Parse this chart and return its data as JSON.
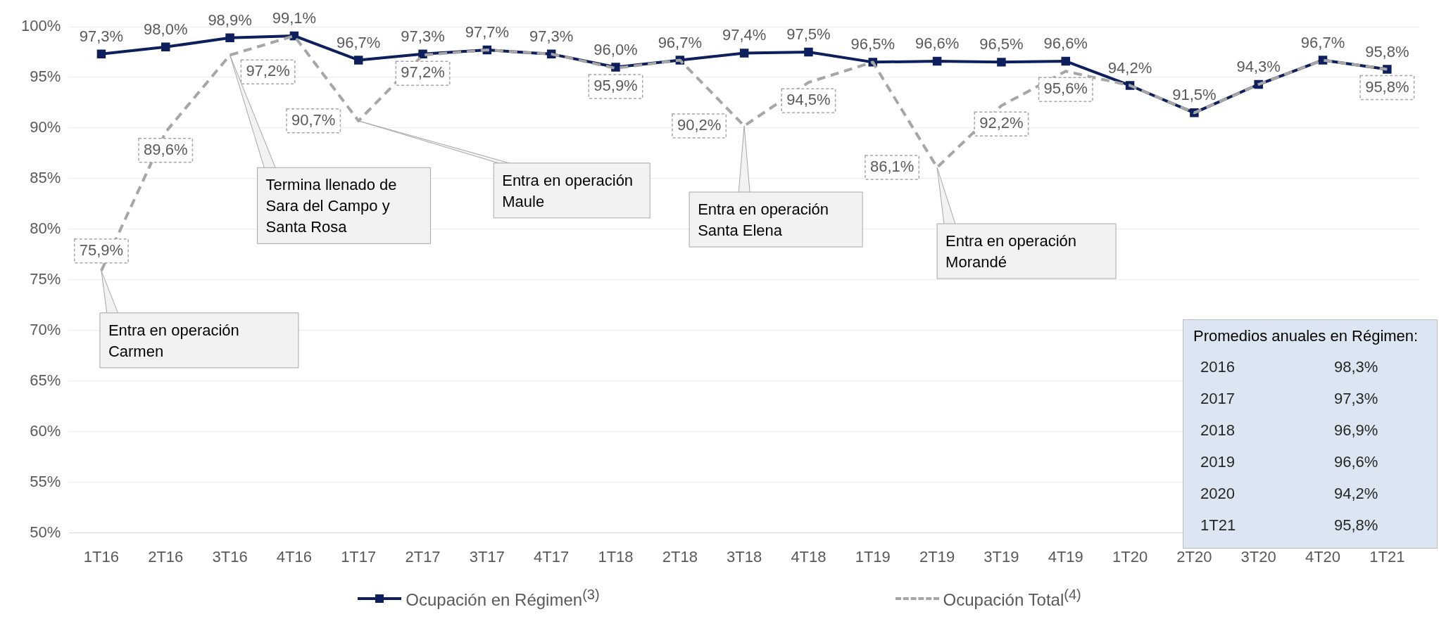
{
  "chart_data": {
    "type": "line",
    "categories": [
      "1T16",
      "2T16",
      "3T16",
      "4T16",
      "1T17",
      "2T17",
      "3T17",
      "4T17",
      "1T18",
      "2T18",
      "3T18",
      "4T18",
      "1T19",
      "2T19",
      "3T19",
      "4T19",
      "1T20",
      "2T20",
      "3T20",
      "4T20",
      "1T21"
    ],
    "series": [
      {
        "name": "Ocupación Total$^{(4)}$",
        "color": "#a6a6a6",
        "line_style": "dashed",
        "marker": "none",
        "values": [
          75.9,
          89.6,
          97.2,
          99.1,
          90.7,
          97.2,
          97.7,
          97.3,
          95.9,
          96.7,
          90.2,
          94.5,
          96.5,
          86.1,
          92.2,
          95.6,
          94.2,
          91.5,
          94.3,
          96.7,
          95.8
        ],
        "value_labels": [
          "75,9%",
          "89,6%",
          "97,2%",
          null,
          "90,7%",
          "97,2%",
          null,
          null,
          "95,9%",
          null,
          "90,2%",
          "94,5%",
          null,
          "86,1%",
          "92,2%",
          "95,6%",
          null,
          null,
          null,
          null,
          "95,8%"
        ]
      },
      {
        "name": "Ocupación en Régimen$^{(3)}$",
        "color": "#0d1f5c",
        "line_style": "solid",
        "marker": "square",
        "values": [
          97.3,
          98.0,
          98.9,
          99.1,
          96.7,
          97.3,
          97.7,
          97.3,
          96.0,
          96.7,
          97.4,
          97.5,
          96.5,
          96.6,
          96.5,
          96.6,
          94.2,
          91.5,
          94.3,
          96.7,
          95.8
        ],
        "value_labels": [
          "97,3%",
          "98,0%",
          "98,9%",
          "99,1%",
          "96,7%",
          "97,3%",
          "97,7%",
          "97,3%",
          "96,0%",
          "96,7%",
          "97,4%",
          "97,5%",
          "96,5%",
          "96,6%",
          "96,5%",
          "96,6%",
          "94,2%",
          "91,5%",
          "94,3%",
          "96,7%",
          "95,8%"
        ]
      }
    ],
    "ylim": [
      50,
      100
    ],
    "yticks": [
      {
        "value": 50,
        "label": "50%"
      },
      {
        "value": 55,
        "label": "55%"
      },
      {
        "value": 60,
        "label": "60%"
      },
      {
        "value": 65,
        "label": "65%"
      },
      {
        "value": 70,
        "label": "70%"
      },
      {
        "value": 75,
        "label": "75%"
      },
      {
        "value": 80,
        "label": "80%"
      },
      {
        "value": 85,
        "label": "85%"
      },
      {
        "value": 90,
        "label": "90%"
      },
      {
        "value": 95,
        "label": "95%"
      },
      {
        "value": 100,
        "label": "100%"
      }
    ],
    "grid": "y",
    "legend": "bottom",
    "annotations": [
      {
        "text": "Entra en operación Carmen",
        "x": "1T16",
        "y": 75.9
      },
      {
        "text": "Termina llenado de Sara del Campo y Santa Rosa",
        "x": "3T16",
        "y": 97.2
      },
      {
        "text": "Entra en operación Maule",
        "x": "1T17",
        "y": 90.7
      },
      {
        "text": "Entra en operación Santa Elena",
        "x": "3T18",
        "y": 90.2
      },
      {
        "text": "Entra en operación Morandé",
        "x": "2T19",
        "y": 86.1
      },
      "Promedios anuales en Régimen:",
      "2016",
      "98,3%",
      "2017",
      "97,3%",
      "2018",
      "96,9%",
      "2019",
      "96,6%",
      "2020",
      "94,2%",
      "1T21",
      "95,8%"
    ]
  }
}
